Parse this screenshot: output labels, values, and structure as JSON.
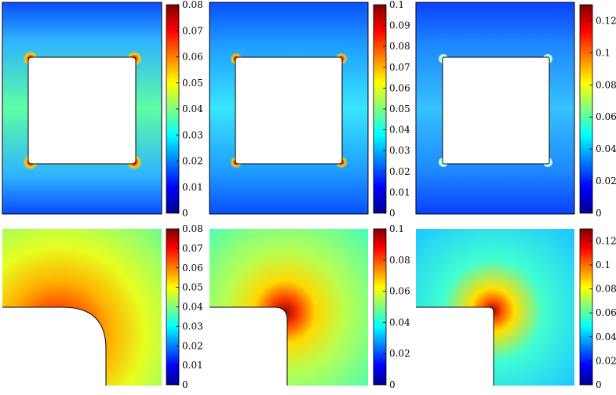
{
  "chart_data": [
    {
      "type": "heatmap",
      "row": "top",
      "col": 0,
      "cbar_range": [
        0,
        0.08
      ],
      "cbar_ticks": [
        "0",
        "0.01",
        "0.02",
        "0.03",
        "0.04",
        "0.05",
        "0.06",
        "0.07",
        "0.08"
      ],
      "base_value": 0.045,
      "peak_value": 0.08
    },
    {
      "type": "heatmap",
      "row": "top",
      "col": 1,
      "cbar_range": [
        0,
        0.1
      ],
      "cbar_ticks": [
        "0",
        "0.01",
        "0.02",
        "0.03",
        "0.04",
        "0.05",
        "0.06",
        "0.07",
        "0.08",
        "0.09",
        "0.1"
      ],
      "base_value": 0.043,
      "peak_value": 0.1
    },
    {
      "type": "heatmap",
      "row": "top",
      "col": 2,
      "cbar_range": [
        0,
        0.13
      ],
      "cbar_ticks": [
        "0",
        "0.02",
        "0.04",
        "0.06",
        "0.08",
        "0.1",
        "0.12"
      ],
      "base_value": 0.048,
      "peak_value": 0.13
    },
    {
      "type": "heatmap",
      "row": "bottom",
      "col": 0,
      "cbar_range": [
        0,
        0.08
      ],
      "cbar_ticks": [
        "0",
        "0.01",
        "0.02",
        "0.03",
        "0.04",
        "0.05",
        "0.06",
        "0.07",
        "0.08"
      ],
      "base_value": 0.046,
      "peak_value": 0.08
    },
    {
      "type": "heatmap",
      "row": "bottom",
      "col": 1,
      "cbar_range": [
        0,
        0.1
      ],
      "cbar_ticks": [
        "0",
        "0.02",
        "0.04",
        "0.06",
        "0.08",
        "0.1"
      ],
      "base_value": 0.05,
      "peak_value": 0.1
    },
    {
      "type": "heatmap",
      "row": "bottom",
      "col": 2,
      "cbar_range": [
        0,
        0.13
      ],
      "cbar_ticks": [
        "0",
        "0.02",
        "0.04",
        "0.06",
        "0.08",
        "0.1",
        "0.12"
      ],
      "base_value": 0.055,
      "peak_value": 0.13
    }
  ],
  "colors": {
    "colormap": "jet"
  }
}
